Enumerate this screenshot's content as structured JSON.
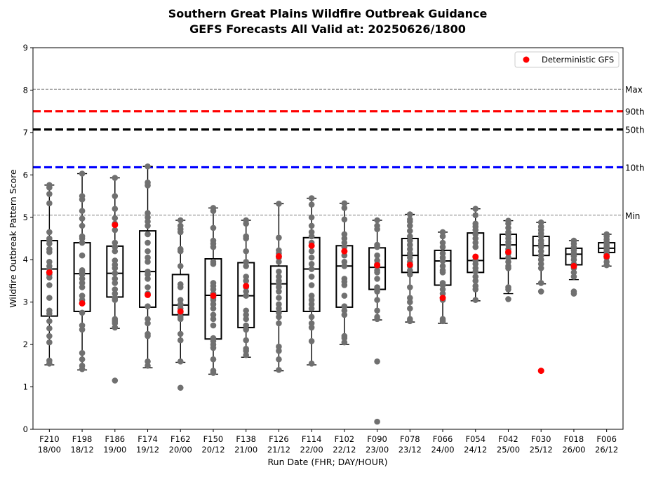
{
  "chart_data": {
    "type": "box",
    "title": "Southern Great Plains Wildfire Outbreak Guidance",
    "subtitle": "GEFS Forecasts All Valid at: 20250626/1800",
    "xlabel": "Run Date (FHR; DAY/HOUR)",
    "ylabel": "Wildfire Outbreak Pattern Score",
    "ylim": [
      0,
      9
    ],
    "yticks": [
      "0",
      "1",
      "2",
      "3",
      "4",
      "5",
      "6",
      "7",
      "8",
      "9"
    ],
    "legend": {
      "label": "Deterministic GFS",
      "position": "top-right",
      "color": "#ff0000"
    },
    "colors": {
      "members": "#707070",
      "deterministic": "#ff0000",
      "p90": "#ff0000",
      "p50": "#000000",
      "p10": "#0000ff",
      "minmax": "#808080"
    },
    "reference_lines": [
      {
        "label": "Max",
        "value": 8.02,
        "style": "dashed-thin",
        "color": "#808080"
      },
      {
        "label": "90th",
        "value": 7.5,
        "style": "dashed-thick",
        "color": "#ff0000"
      },
      {
        "label": "50th",
        "value": 7.07,
        "style": "dashed-thick",
        "color": "#000000"
      },
      {
        "label": "10th",
        "value": 6.18,
        "style": "dashed-thick",
        "color": "#0000ff"
      },
      {
        "label": "Min",
        "value": 5.05,
        "style": "dashed-thin",
        "color": "#808080"
      }
    ],
    "categories": [
      {
        "fhr": "F210",
        "day_hour": "18/00",
        "whislo": 1.52,
        "q1": 2.67,
        "med": 3.78,
        "q3": 4.45,
        "whishi": 5.76,
        "det": 3.7,
        "members": [
          5.76,
          5.7,
          5.55,
          5.33,
          4.65,
          4.5,
          4.45,
          4.38,
          4.25,
          4.18,
          3.95,
          3.85,
          3.78,
          3.65,
          3.58,
          3.4,
          3.1,
          2.8,
          2.73,
          2.55,
          2.38,
          2.2,
          2.05,
          1.62,
          1.55
        ]
      },
      {
        "fhr": "F198",
        "day_hour": "18/12",
        "whislo": 1.4,
        "q1": 2.78,
        "med": 3.67,
        "q3": 4.4,
        "whishi": 6.03,
        "det": 2.97,
        "members": [
          6.03,
          5.5,
          5.42,
          5.15,
          4.97,
          4.8,
          4.55,
          4.5,
          4.4,
          4.1,
          3.75,
          3.7,
          3.65,
          3.55,
          3.45,
          3.35,
          3.15,
          3.05,
          2.75,
          2.45,
          2.35,
          1.8,
          1.65,
          1.5,
          1.42
        ]
      },
      {
        "fhr": "F186",
        "day_hour": "19/00",
        "whislo": 2.38,
        "q1": 3.12,
        "med": 3.68,
        "q3": 4.32,
        "whishi": 5.93,
        "det": 4.82,
        "members": [
          5.93,
          5.5,
          5.2,
          4.98,
          4.85,
          4.7,
          4.4,
          4.3,
          4.2,
          3.98,
          3.88,
          3.8,
          3.68,
          3.55,
          3.45,
          3.3,
          3.2,
          3.1,
          3.05,
          2.6,
          2.55,
          2.5,
          2.4,
          1.15
        ]
      },
      {
        "fhr": "F174",
        "day_hour": "19/12",
        "whislo": 1.45,
        "q1": 2.88,
        "med": 3.72,
        "q3": 4.68,
        "whishi": 6.2,
        "det": 3.17,
        "members": [
          6.2,
          5.82,
          5.75,
          5.1,
          5.0,
          4.9,
          4.8,
          4.6,
          4.4,
          4.2,
          4.05,
          3.95,
          3.72,
          3.65,
          3.55,
          3.35,
          3.2,
          2.9,
          2.6,
          2.5,
          2.25,
          2.2,
          1.6,
          1.5
        ]
      },
      {
        "fhr": "F162",
        "day_hour": "20/00",
        "whislo": 1.58,
        "q1": 2.7,
        "med": 2.93,
        "q3": 3.65,
        "whishi": 4.93,
        "det": 2.78,
        "members": [
          4.93,
          4.8,
          4.72,
          4.65,
          4.25,
          4.2,
          3.85,
          3.42,
          3.35,
          3.05,
          2.95,
          2.93,
          2.85,
          2.75,
          2.65,
          2.6,
          2.25,
          2.1,
          1.6,
          0.98
        ]
      },
      {
        "fhr": "F150",
        "day_hour": "20/12",
        "whislo": 1.3,
        "q1": 2.13,
        "med": 3.16,
        "q3": 4.02,
        "whishi": 5.22,
        "det": 3.15,
        "members": [
          5.22,
          5.15,
          4.75,
          4.45,
          4.38,
          4.3,
          3.95,
          3.9,
          3.45,
          3.38,
          3.3,
          3.2,
          3.1,
          3.05,
          2.95,
          2.85,
          2.7,
          2.6,
          2.45,
          2.15,
          2.08,
          2.0,
          1.92,
          1.65,
          1.38,
          1.33
        ]
      },
      {
        "fhr": "F138",
        "day_hour": "21/00",
        "whislo": 1.7,
        "q1": 2.4,
        "med": 3.15,
        "q3": 3.93,
        "whishi": 4.93,
        "det": 3.38,
        "members": [
          4.93,
          4.85,
          4.55,
          4.5,
          4.2,
          3.95,
          3.85,
          3.6,
          3.5,
          3.35,
          3.25,
          3.15,
          2.8,
          2.7,
          2.6,
          2.45,
          2.35,
          2.1,
          1.9,
          1.85,
          1.75
        ]
      },
      {
        "fhr": "F126",
        "day_hour": "21/12",
        "whislo": 1.38,
        "q1": 2.78,
        "med": 3.43,
        "q3": 3.85,
        "whishi": 5.32,
        "det": 4.08,
        "members": [
          5.32,
          4.52,
          4.22,
          4.15,
          4.05,
          3.95,
          3.72,
          3.6,
          3.5,
          3.43,
          3.35,
          3.25,
          3.1,
          2.95,
          2.85,
          2.75,
          2.65,
          2.5,
          1.95,
          1.85,
          1.65,
          1.4
        ]
      },
      {
        "fhr": "F114",
        "day_hour": "22/00",
        "whislo": 1.52,
        "q1": 2.78,
        "med": 3.78,
        "q3": 4.52,
        "whishi": 5.45,
        "det": 4.33,
        "members": [
          5.45,
          5.3,
          5.0,
          4.8,
          4.65,
          4.55,
          4.4,
          4.2,
          4.05,
          3.9,
          3.78,
          3.6,
          3.4,
          3.15,
          3.05,
          2.95,
          2.85,
          2.65,
          2.5,
          2.4,
          2.08,
          1.55
        ]
      },
      {
        "fhr": "F102",
        "day_hour": "22/12",
        "whislo": 2.0,
        "q1": 2.88,
        "med": 3.85,
        "q3": 4.33,
        "whishi": 5.33,
        "det": 4.2,
        "members": [
          5.33,
          5.22,
          4.95,
          4.6,
          4.5,
          4.4,
          4.3,
          4.1,
          3.95,
          3.85,
          3.55,
          3.48,
          3.4,
          3.15,
          2.9,
          2.8,
          2.7,
          2.2,
          2.15,
          2.05
        ]
      },
      {
        "fhr": "F090",
        "day_hour": "23/00",
        "whislo": 2.58,
        "q1": 3.3,
        "med": 3.82,
        "q3": 4.28,
        "whishi": 4.93,
        "det": 3.87,
        "members": [
          4.93,
          4.8,
          4.72,
          4.35,
          4.3,
          4.1,
          3.98,
          3.9,
          3.85,
          3.75,
          3.7,
          3.55,
          3.35,
          3.3,
          3.25,
          3.05,
          2.8,
          2.65,
          2.6,
          1.6,
          0.18
        ]
      },
      {
        "fhr": "F078",
        "day_hour": "23/12",
        "whislo": 2.53,
        "q1": 3.7,
        "med": 4.1,
        "q3": 4.5,
        "whishi": 5.07,
        "det": 3.88,
        "members": [
          5.07,
          4.95,
          4.9,
          4.8,
          4.68,
          4.55,
          4.45,
          4.35,
          4.25,
          4.15,
          4.05,
          3.95,
          3.85,
          3.75,
          3.65,
          3.35,
          3.1,
          3.0,
          2.85,
          2.6,
          2.55
        ]
      },
      {
        "fhr": "F066",
        "day_hour": "24/00",
        "whislo": 2.5,
        "q1": 3.4,
        "med": 3.97,
        "q3": 4.22,
        "whishi": 4.65,
        "det": 3.1,
        "members": [
          4.65,
          4.55,
          4.4,
          4.3,
          4.15,
          4.05,
          3.97,
          3.85,
          3.75,
          3.7,
          3.45,
          3.4,
          3.3,
          3.2,
          3.05,
          2.6,
          2.55
        ]
      },
      {
        "fhr": "F054",
        "day_hour": "24/12",
        "whislo": 3.03,
        "q1": 3.7,
        "med": 3.98,
        "q3": 4.63,
        "whishi": 5.2,
        "det": 4.07,
        "members": [
          5.2,
          5.05,
          4.85,
          4.78,
          4.7,
          4.6,
          4.5,
          4.4,
          4.3,
          4.0,
          3.98,
          3.9,
          3.8,
          3.72,
          3.6,
          3.5,
          3.38,
          3.3,
          3.05
        ]
      },
      {
        "fhr": "F042",
        "day_hour": "25/00",
        "whislo": 3.2,
        "q1": 4.03,
        "med": 4.35,
        "q3": 4.6,
        "whishi": 4.92,
        "det": 4.18,
        "members": [
          4.92,
          4.85,
          4.75,
          4.65,
          4.58,
          4.5,
          4.42,
          4.35,
          4.25,
          4.15,
          4.05,
          3.95,
          3.85,
          3.8,
          3.35,
          3.3,
          3.07
        ]
      },
      {
        "fhr": "F030",
        "day_hour": "25/12",
        "whislo": 3.43,
        "q1": 4.1,
        "med": 4.33,
        "q3": 4.55,
        "whishi": 4.88,
        "det": 1.38,
        "members": [
          4.88,
          4.78,
          4.7,
          4.62,
          4.55,
          4.45,
          4.38,
          4.3,
          4.2,
          4.1,
          4.0,
          3.9,
          3.8,
          3.45,
          3.25
        ]
      },
      {
        "fhr": "F018",
        "day_hour": "26/00",
        "whislo": 3.53,
        "q1": 3.88,
        "med": 4.13,
        "q3": 4.27,
        "whishi": 4.45,
        "det": 3.85,
        "members": [
          4.45,
          4.38,
          4.3,
          4.22,
          4.15,
          4.08,
          4.0,
          3.9,
          3.8,
          3.7,
          3.6,
          3.25,
          3.2
        ]
      },
      {
        "fhr": "F006",
        "day_hour": "26/12",
        "whislo": 3.85,
        "q1": 4.17,
        "med": 4.27,
        "q3": 4.4,
        "whishi": 4.6,
        "det": 4.08,
        "members": [
          4.6,
          4.55,
          4.48,
          4.42,
          4.35,
          4.3,
          4.25,
          4.2,
          4.12,
          4.05,
          3.95,
          3.87
        ]
      }
    ]
  }
}
